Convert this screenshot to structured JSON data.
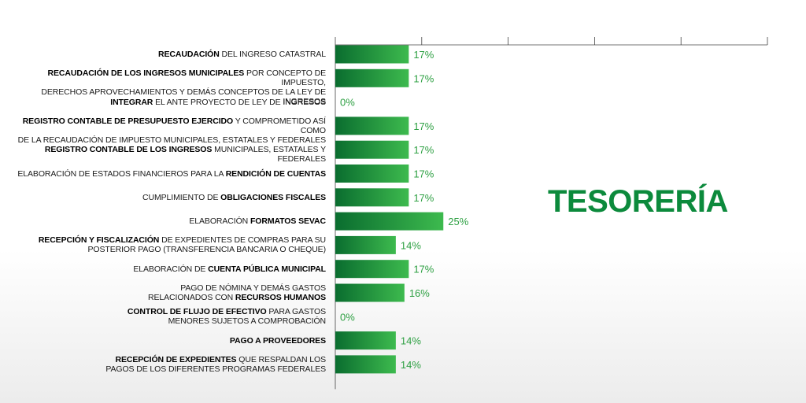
{
  "title": "TESORERÍA",
  "colors": {
    "bar_dark": "#0a6d2f",
    "bar_light": "#3dba4e",
    "value_label": "#2ea043",
    "title": "#0c8a3c",
    "axis": "#444444"
  },
  "chart_data": {
    "type": "bar",
    "orientation": "horizontal",
    "value_unit": "%",
    "xlim": [
      0,
      100
    ],
    "grid": false,
    "categories": [
      [
        {
          "t": "RECAUDACIÓN",
          "b": true
        },
        {
          "t": " DEL INGRESO CATASTRAL",
          "b": false
        }
      ],
      [
        {
          "t": "RECAUDACIÓN DE LOS INGRESOS MUNICIPALES",
          "b": true
        },
        {
          "t": " POR CONCEPTO DE IMPUESTO,\nDERECHOS  APROVECHAMIENTOS Y DEMÁS CONCEPTOS DE LA LEY DE INGRESOS",
          "b": false
        }
      ],
      [
        {
          "t": "INTEGRAR",
          "b": true
        },
        {
          "t": " EL ANTE PROYECTO DE LEY DE INGRESOS",
          "b": false
        }
      ],
      [
        {
          "t": "REGISTRO CONTABLE DE PRESUPUESTO EJERCIDO",
          "b": true
        },
        {
          "t": " Y COMPROMETIDO ASÍ COMO\nDE LA RECAUDACIÓN DE IMPUESTO MUNICIPALES, ESTATALES Y FEDERALES",
          "b": false
        }
      ],
      [
        {
          "t": "REGISTRO CONTABLE DE LOS INGRESOS",
          "b": true
        },
        {
          "t": " MUNICIPALES, ESTATALES Y FEDERALES",
          "b": false
        }
      ],
      [
        {
          "t": "ELABORACIÓN DE ESTADOS FINANCIEROS PARA LA ",
          "b": false
        },
        {
          "t": "RENDICIÓN DE CUENTAS",
          "b": true
        }
      ],
      [
        {
          "t": "CUMPLIMIENTO DE ",
          "b": false
        },
        {
          "t": "OBLIGACIONES FISCALES",
          "b": true
        }
      ],
      [
        {
          "t": "ELABORACIÓN ",
          "b": false
        },
        {
          "t": "FORMATOS SEVAC",
          "b": true
        }
      ],
      [
        {
          "t": "RECEPCIÓN Y FISCALIZACIÓN",
          "b": true
        },
        {
          "t": " DE EXPEDIENTES DE COMPRAS PARA SU\nPOSTERIOR PAGO (TRANSFERENCIA BANCARIA O CHEQUE)",
          "b": false
        }
      ],
      [
        {
          "t": "ELABORACIÓN DE ",
          "b": false
        },
        {
          "t": "CUENTA PÚBLICA MUNICIPAL",
          "b": true
        }
      ],
      [
        {
          "t": "PAGO DE NÓMINA Y DEMÁS GASTOS\nRELACIONADOS CON ",
          "b": false
        },
        {
          "t": "RECURSOS HUMANOS",
          "b": true
        }
      ],
      [
        {
          "t": "CONTROL DE FLUJO DE EFECTIVO",
          "b": true
        },
        {
          "t": " PARA GASTOS\nMENORES SUJETOS A COMPROBACIÓN",
          "b": false
        }
      ],
      [
        {
          "t": "PAGO A PROVEEDORES",
          "b": true
        }
      ],
      [
        {
          "t": "RECEPCIÓN DE EXPEDIENTES",
          "b": true
        },
        {
          "t": " QUE RESPALDAN LOS\nPAGOS DE LOS DIFERENTES PROGRAMAS FEDERALES",
          "b": false
        }
      ]
    ],
    "values": [
      17,
      17,
      0,
      17,
      17,
      17,
      17,
      25,
      14,
      17,
      16,
      0,
      14,
      14
    ],
    "value_labels": [
      "17%",
      "17%",
      "0%",
      "17%",
      "17%",
      "17%",
      "17%",
      "25%",
      "14%",
      "17%",
      "16%",
      "0%",
      "14%",
      "14%"
    ]
  }
}
